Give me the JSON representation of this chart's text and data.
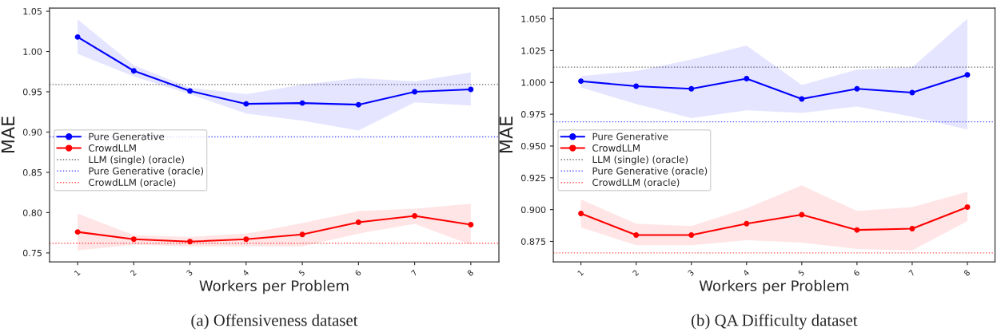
{
  "chart_data": [
    {
      "type": "line",
      "xlabel": "Workers per Problem",
      "ylabel": "MAE",
      "annotations": [
        "(a) Offensiveness dataset"
      ],
      "x": [
        1,
        2,
        3,
        4,
        5,
        6,
        7,
        8
      ],
      "xlim": [
        0.5,
        8.5
      ],
      "xticks": [
        1,
        2,
        3,
        4,
        5,
        6,
        7,
        8
      ],
      "ylim": [
        0.739,
        1.054
      ],
      "yticks": [
        0.75,
        {
          "value": 0.8,
          "label": "0.80"
        },
        0.85,
        {
          "value": 0.9,
          "label": "0.90"
        },
        0.95,
        {
          "value": 1.0,
          "label": "1.00"
        },
        1.05
      ],
      "marker": "circle",
      "line_style": "solid",
      "grid": false,
      "legend": "left",
      "series": [
        {
          "name": "Pure Generative",
          "color": "#0000ff",
          "values": [
            1.018,
            0.976,
            0.951,
            0.935,
            0.936,
            0.934,
            0.95,
            0.953
          ],
          "lower": [
            0.997,
            0.969,
            0.947,
            0.923,
            0.914,
            0.902,
            0.937,
            0.933
          ],
          "upper": [
            1.04,
            0.983,
            0.955,
            0.947,
            0.959,
            0.967,
            0.963,
            0.974
          ]
        },
        {
          "name": "CrowdLLM",
          "color": "#ff0000",
          "values": [
            0.776,
            0.767,
            0.764,
            0.767,
            0.773,
            0.788,
            0.796,
            0.785
          ],
          "lower": [
            0.753,
            0.76,
            0.758,
            0.758,
            0.758,
            0.774,
            0.786,
            0.76
          ],
          "upper": [
            0.799,
            0.772,
            0.77,
            0.774,
            0.787,
            0.802,
            0.805,
            0.811
          ]
        }
      ],
      "ref_lines": [
        {
          "axis": "y",
          "value": 0.959,
          "label": "LLM (single) (oracle)",
          "color": "#666666",
          "line_style": "dotted"
        },
        {
          "axis": "y",
          "value": 0.894,
          "label": "Pure Generative (oracle)",
          "color": "#5555ff",
          "line_style": "dotted"
        },
        {
          "axis": "y",
          "value": 0.762,
          "label": "CrowdLLM (oracle)",
          "color": "#ff5555",
          "line_style": "dotted"
        }
      ]
    },
    {
      "type": "line",
      "xlabel": "Workers per Problem",
      "ylabel": "MAE",
      "annotations": [
        "(b) QA Difficulty dataset"
      ],
      "x": [
        1,
        2,
        3,
        4,
        5,
        6,
        7,
        8
      ],
      "xlim": [
        0.5,
        8.5
      ],
      "xticks": [
        1,
        2,
        3,
        4,
        5,
        6,
        7,
        8
      ],
      "ylim": [
        0.859,
        1.0585
      ],
      "yticks": [
        {
          "value": 0.875,
          "label": "0.875"
        },
        {
          "value": 0.9,
          "label": "0.900"
        },
        {
          "value": 0.925,
          "label": "0.925"
        },
        {
          "value": 0.95,
          "label": "0.950"
        },
        {
          "value": 0.975,
          "label": "0.975"
        },
        {
          "value": 1.0,
          "label": "1.000"
        },
        {
          "value": 1.025,
          "label": "1.025"
        },
        {
          "value": 1.05,
          "label": "1.050"
        }
      ],
      "marker": "circle",
      "line_style": "solid",
      "grid": false,
      "legend": "left",
      "series": [
        {
          "name": "Pure Generative",
          "color": "#0000ff",
          "values": [
            1.001,
            0.997,
            0.995,
            1.003,
            0.987,
            0.995,
            0.992,
            1.006
          ],
          "lower": [
            0.996,
            0.983,
            0.972,
            0.978,
            0.976,
            0.981,
            0.973,
            0.963
          ],
          "upper": [
            1.005,
            1.009,
            1.018,
            1.029,
            0.998,
            1.01,
            1.012,
            1.05
          ]
        },
        {
          "name": "CrowdLLM",
          "color": "#ff0000",
          "values": [
            0.897,
            0.88,
            0.88,
            0.889,
            0.896,
            0.884,
            0.885,
            0.902
          ],
          "lower": [
            0.886,
            0.872,
            0.872,
            0.876,
            0.874,
            0.869,
            0.868,
            0.891
          ],
          "upper": [
            0.908,
            0.889,
            0.887,
            0.901,
            0.919,
            0.899,
            0.902,
            0.914
          ]
        }
      ],
      "ref_lines": [
        {
          "axis": "y",
          "value": 1.012,
          "label": "LLM (single) (oracle)",
          "color": "#666666",
          "line_style": "dotted"
        },
        {
          "axis": "y",
          "value": 0.969,
          "label": "Pure Generative (oracle)",
          "color": "#5555ff",
          "line_style": "dotted"
        },
        {
          "axis": "y",
          "value": 0.866,
          "label": "CrowdLLM (oracle)",
          "color": "#ff5555",
          "line_style": "dotted"
        }
      ]
    }
  ]
}
